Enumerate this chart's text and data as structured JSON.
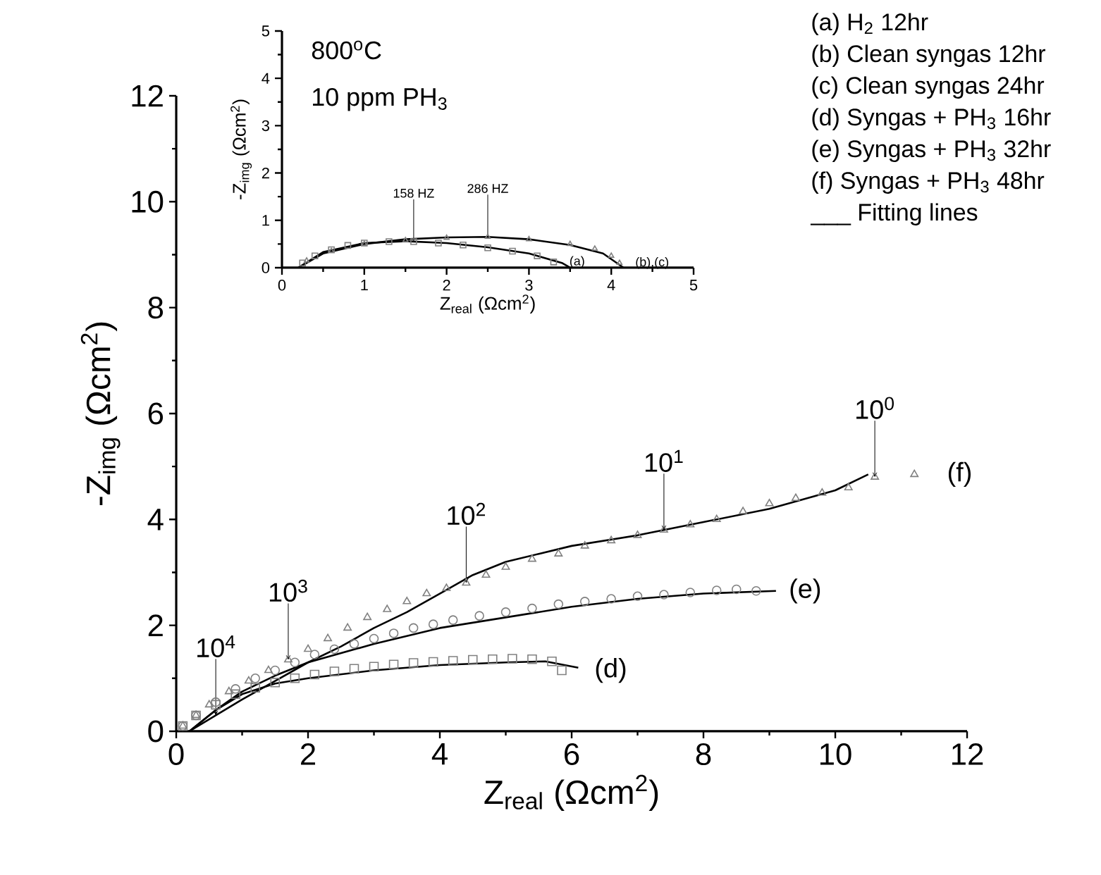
{
  "chart_data": [
    {
      "type": "scatter",
      "xlabel": "Z$_{real}$ (Ωcm$^{2}$)",
      "ylabel": "-Z$_{img}$ (Ωcm$^{2}$)",
      "xlim": [
        0,
        12
      ],
      "ylim": [
        0,
        12
      ],
      "xticks": [
        0,
        2,
        4,
        6,
        8,
        10,
        12
      ],
      "yticks": [
        0,
        2,
        4,
        6,
        8,
        10,
        12
      ],
      "series": [
        {
          "name": "(d)",
          "marker": "square",
          "color": "#808080",
          "x": [
            0.1,
            0.3,
            0.6,
            0.9,
            1.2,
            1.5,
            1.8,
            2.1,
            2.4,
            2.7,
            3.0,
            3.3,
            3.6,
            3.9,
            4.2,
            4.5,
            4.8,
            5.1,
            5.4,
            5.7,
            5.85
          ],
          "values": [
            0.1,
            0.3,
            0.5,
            0.7,
            0.82,
            0.92,
            1.0,
            1.07,
            1.13,
            1.18,
            1.22,
            1.26,
            1.29,
            1.31,
            1.33,
            1.35,
            1.36,
            1.37,
            1.36,
            1.32,
            1.15
          ]
        },
        {
          "name": "(e)",
          "marker": "circle",
          "color": "#808080",
          "x": [
            0.1,
            0.3,
            0.6,
            0.9,
            1.2,
            1.5,
            1.8,
            2.1,
            2.4,
            2.7,
            3.0,
            3.3,
            3.6,
            3.9,
            4.2,
            4.6,
            5.0,
            5.4,
            5.8,
            6.2,
            6.6,
            7.0,
            7.4,
            7.8,
            8.2,
            8.5,
            8.8
          ],
          "values": [
            0.1,
            0.3,
            0.55,
            0.8,
            1.0,
            1.15,
            1.3,
            1.45,
            1.55,
            1.65,
            1.75,
            1.85,
            1.95,
            2.02,
            2.1,
            2.18,
            2.25,
            2.32,
            2.4,
            2.45,
            2.5,
            2.55,
            2.58,
            2.62,
            2.66,
            2.68,
            2.65
          ]
        },
        {
          "name": "(f)",
          "marker": "triangle",
          "color": "#808080",
          "x": [
            0.1,
            0.3,
            0.5,
            0.8,
            1.1,
            1.4,
            1.7,
            2.0,
            2.3,
            2.6,
            2.9,
            3.2,
            3.5,
            3.8,
            4.1,
            4.4,
            4.7,
            5.0,
            5.4,
            5.8,
            6.2,
            6.6,
            7.0,
            7.4,
            7.8,
            8.2,
            8.6,
            9.0,
            9.4,
            9.8,
            10.2,
            10.6,
            11.2
          ],
          "values": [
            0.1,
            0.3,
            0.5,
            0.75,
            0.95,
            1.15,
            1.35,
            1.55,
            1.75,
            1.95,
            2.15,
            2.3,
            2.45,
            2.6,
            2.7,
            2.8,
            2.95,
            3.1,
            3.25,
            3.35,
            3.5,
            3.6,
            3.7,
            3.8,
            3.9,
            4.0,
            4.15,
            4.3,
            4.4,
            4.5,
            4.6,
            4.8,
            4.85
          ]
        },
        {
          "type": "line",
          "marker": "none",
          "color": "#000000",
          "x": [
            0.2,
            0.6,
            1,
            1.5,
            2,
            3,
            4,
            5,
            5.6,
            6.1
          ],
          "values": [
            0,
            0.4,
            0.7,
            0.9,
            1.0,
            1.15,
            1.25,
            1.3,
            1.32,
            1.2
          ]
        },
        {
          "type": "line",
          "marker": "none",
          "color": "#000000",
          "x": [
            0.2,
            0.6,
            1,
            1.5,
            2,
            3,
            4,
            5,
            6,
            7,
            8,
            9.1
          ],
          "values": [
            0,
            0.4,
            0.75,
            1.05,
            1.3,
            1.65,
            1.95,
            2.15,
            2.35,
            2.5,
            2.6,
            2.65
          ]
        },
        {
          "type": "line",
          "marker": "none",
          "color": "#000000",
          "x": [
            0.2,
            0.6,
            1,
            1.5,
            2,
            2.5,
            3,
            3.5,
            4,
            4.5,
            5,
            5.5,
            6,
            7,
            8,
            9,
            10,
            10.5
          ],
          "values": [
            0,
            0.3,
            0.6,
            0.95,
            1.3,
            1.6,
            1.95,
            2.25,
            2.6,
            2.95,
            3.2,
            3.35,
            3.5,
            3.7,
            3.95,
            4.2,
            4.55,
            4.85
          ]
        }
      ],
      "annotations": [
        "(a) H$_{2}$ 12hr",
        "(b) Clean syngas 12hr",
        "(c) Clean syngas 24hr",
        "(d) Syngas + PH$_{3}$ 16hr",
        "(e) Syngas + PH$_{3}$ 32hr",
        "(f) Syngas + PH$_{3}$ 48hr",
        "___ Fitting lines",
        {
          "text": "10$^{4}$",
          "x": 0.6,
          "y": 0.3
        },
        {
          "text": "10$^{3}$",
          "x": 1.7,
          "y": 1.35
        },
        {
          "text": "10$^{2}$",
          "x": 4.4,
          "y": 2.8
        },
        {
          "text": "10$^{1}$",
          "x": 7.4,
          "y": 3.8
        },
        {
          "text": "10$^{0}$",
          "x": 10.6,
          "y": 4.8
        }
      ]
    },
    {
      "type": "scatter",
      "xlabel": "Z$_{real}$ (Ωcm$^{2}$)",
      "ylabel": "-Z$_{img}$ (Ωcm$^{2}$)",
      "xlim": [
        0,
        5
      ],
      "ylim": [
        0,
        5
      ],
      "xticks": [
        0,
        1,
        2,
        3,
        4,
        5
      ],
      "yticks": [
        0,
        1,
        2,
        3,
        4,
        5
      ],
      "series": [
        {
          "name": "(a)",
          "marker": "square",
          "color": "#808080",
          "x": [
            0.25,
            0.4,
            0.6,
            0.8,
            1.0,
            1.3,
            1.6,
            1.9,
            2.2,
            2.5,
            2.8,
            3.1,
            3.3
          ],
          "values": [
            0.1,
            0.25,
            0.38,
            0.47,
            0.52,
            0.55,
            0.55,
            0.52,
            0.48,
            0.42,
            0.35,
            0.25,
            0.12
          ]
        },
        {
          "name": "(b),(c)",
          "marker": "triangle",
          "color": "#808080",
          "x": [
            0.3,
            0.6,
            1.0,
            1.5,
            2.0,
            2.5,
            3.0,
            3.5,
            3.8,
            4.0,
            4.1
          ],
          "values": [
            0.15,
            0.35,
            0.5,
            0.58,
            0.63,
            0.65,
            0.6,
            0.5,
            0.4,
            0.25,
            0.1
          ]
        },
        {
          "type": "line",
          "marker": "none",
          "color": "#000000",
          "x": [
            0.2,
            0.5,
            1,
            1.5,
            2,
            2.5,
            3,
            3.4,
            3.5
          ],
          "values": [
            0,
            0.33,
            0.52,
            0.56,
            0.52,
            0.43,
            0.3,
            0.1,
            0
          ]
        },
        {
          "type": "line",
          "marker": "none",
          "color": "#000000",
          "x": [
            0.2,
            0.5,
            1,
            1.5,
            2,
            2.5,
            3,
            3.5,
            3.9,
            4.15
          ],
          "values": [
            0,
            0.3,
            0.5,
            0.6,
            0.64,
            0.65,
            0.6,
            0.48,
            0.3,
            0
          ]
        }
      ],
      "annotations": [
        "800$^{o}$C",
        "10 ppm PH$_{3}$",
        {
          "text": "158 HZ",
          "x": 1.6,
          "y": 0.55
        },
        {
          "text": "286 HZ",
          "x": 2.5,
          "y": 0.65
        }
      ]
    }
  ]
}
